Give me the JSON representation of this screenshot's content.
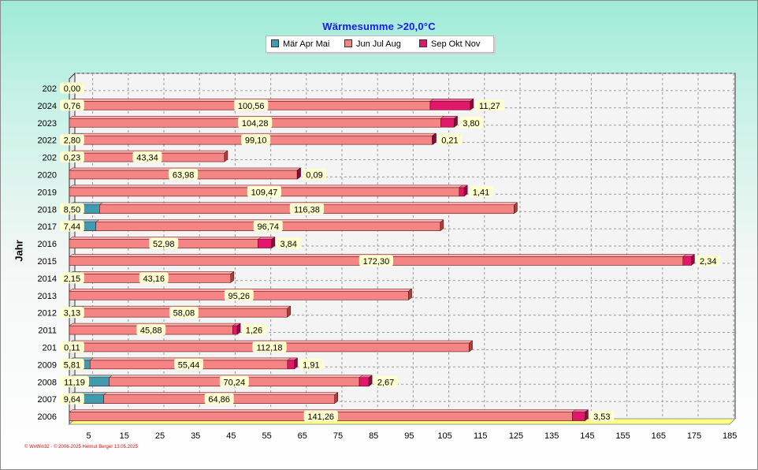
{
  "title": "Wärmesumme  >20,0°C",
  "legend": [
    {
      "label": "Mär Apr Mai",
      "color": "#3f9bb0"
    },
    {
      "label": "Jun Jul Aug",
      "color": "#f58484"
    },
    {
      "label": "Sep Okt Nov",
      "color": "#e2166a"
    }
  ],
  "footer": "© WxWin32 - © 2006-2025 Helmut Berger  13.05.2025",
  "chart_data": {
    "type": "bar",
    "orientation": "horizontal",
    "stacked": true,
    "title": "Wärmesumme  >20,0°C",
    "ylabel": "Jahr",
    "xlabel": "",
    "xlim": [
      0,
      185
    ],
    "xticks": [
      5,
      15,
      25,
      35,
      45,
      55,
      65,
      75,
      85,
      95,
      105,
      115,
      125,
      135,
      145,
      155,
      165,
      175,
      185
    ],
    "grid": true,
    "legend_position": "top",
    "categories": [
      "202",
      "2024",
      "2023",
      "2022",
      "202",
      "2020",
      "2019",
      "2018",
      "2017",
      "2016",
      "2015",
      "2014",
      "2013",
      "2012",
      "2011",
      "201",
      "2009",
      "2008",
      "2007",
      "2006"
    ],
    "series": [
      {
        "name": "Mär Apr Mai",
        "values": [
          0.0,
          0.76,
          0,
          2.8,
          0.23,
          0,
          0,
          8.5,
          7.44,
          0,
          0,
          2.15,
          0,
          3.13,
          0,
          0.11,
          5.81,
          11.19,
          9.64,
          0
        ]
      },
      {
        "name": "Jun Jul Aug",
        "values": [
          0,
          100.56,
          104.28,
          99.1,
          43.34,
          63.98,
          109.47,
          116.38,
          96.74,
          52.98,
          172.3,
          43.16,
          95.26,
          58.08,
          45.88,
          112.18,
          55.44,
          70.24,
          64.86,
          141.26
        ]
      },
      {
        "name": "Sep Okt Nov",
        "values": [
          0,
          11.27,
          3.8,
          0.21,
          0,
          0.09,
          1.41,
          0,
          0,
          3.84,
          2.34,
          0,
          0,
          0,
          1.26,
          0,
          1.91,
          2.67,
          0,
          3.53
        ]
      }
    ],
    "value_labels": [
      [
        "0,00",
        "",
        ""
      ],
      [
        "0,76",
        "100,56",
        "11,27"
      ],
      [
        "",
        "104,28",
        "3,80"
      ],
      [
        "2,80",
        "99,10",
        "0,21"
      ],
      [
        "0,23",
        "43,34",
        ""
      ],
      [
        "",
        "63,98",
        "0,09"
      ],
      [
        "",
        "109,47",
        "1,41"
      ],
      [
        "8,50",
        "116,38",
        ""
      ],
      [
        "7,44",
        "96,74",
        ""
      ],
      [
        "",
        "52,98",
        "3,84"
      ],
      [
        "",
        "172,30",
        "2,34"
      ],
      [
        "2,15",
        "43,16",
        ""
      ],
      [
        "",
        "95,26",
        ""
      ],
      [
        "3,13",
        "58,08",
        ""
      ],
      [
        "",
        "45,88",
        "1,26"
      ],
      [
        "0,11",
        "112,18",
        ""
      ],
      [
        "5,81",
        "55,44",
        "1,91"
      ],
      [
        "11,19",
        "70,24",
        "2,67"
      ],
      [
        "9,64",
        "64,86",
        ""
      ],
      [
        "",
        "141,26",
        "3,53"
      ]
    ]
  }
}
